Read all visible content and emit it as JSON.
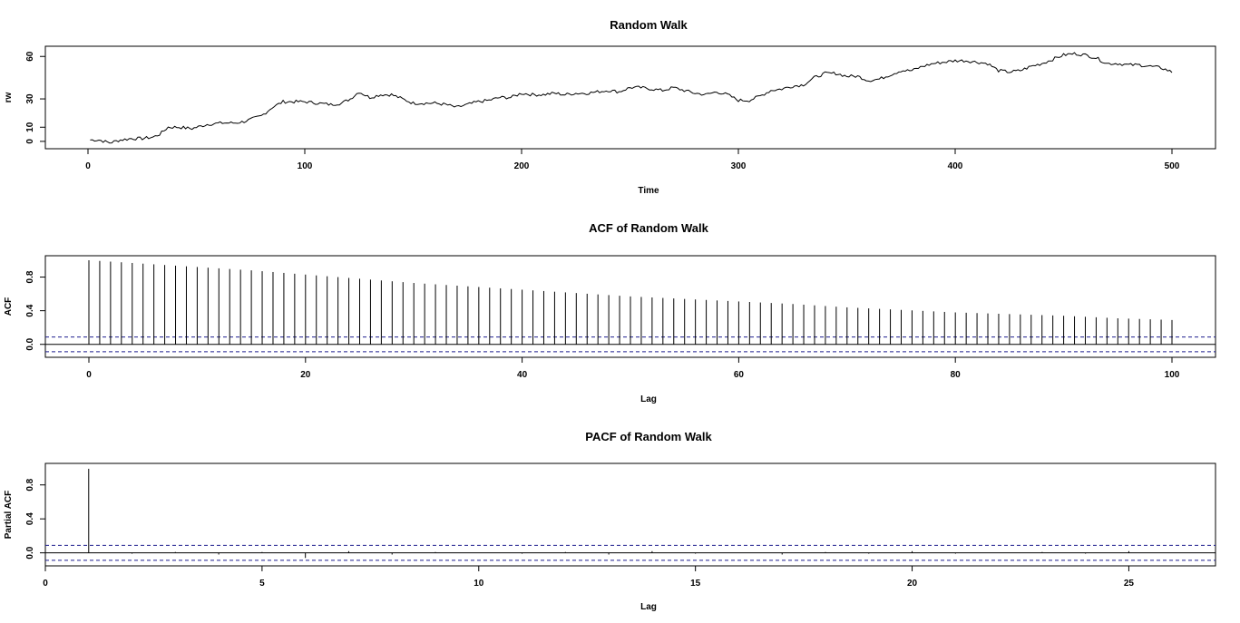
{
  "chart_data": [
    {
      "type": "line",
      "title": "Random Walk",
      "xlabel": "Time",
      "ylabel": "rw",
      "xlim": [
        0,
        500
      ],
      "ylim": [
        -2,
        64
      ],
      "xticks": [
        0,
        100,
        200,
        300,
        400,
        500
      ],
      "yticks": [
        0,
        10,
        30,
        60
      ],
      "grid": false,
      "x_start": 1,
      "x_step": 1,
      "anchors_x": [
        1,
        5,
        10,
        15,
        20,
        25,
        30,
        33,
        37,
        42,
        48,
        55,
        62,
        68,
        72,
        76,
        80,
        85,
        90,
        95,
        100,
        106,
        112,
        117,
        121,
        125,
        130,
        135,
        140,
        145,
        150,
        155,
        160,
        165,
        170,
        175,
        180,
        185,
        190,
        195,
        200,
        205,
        210,
        215,
        220,
        225,
        230,
        235,
        240,
        245,
        250,
        255,
        260,
        265,
        270,
        275,
        280,
        285,
        290,
        295,
        300,
        305,
        310,
        315,
        320,
        325,
        330,
        335,
        340,
        345,
        350,
        355,
        360,
        365,
        370,
        375,
        380,
        385,
        390,
        395,
        400,
        405,
        410,
        415,
        420,
        425,
        430,
        435,
        440,
        445,
        450,
        455,
        460,
        465,
        470,
        475,
        480,
        485,
        490,
        495,
        500
      ],
      "anchors_y": [
        1,
        1,
        -1,
        1,
        2,
        2,
        3,
        5,
        10,
        10,
        9,
        12,
        13,
        13,
        14,
        16,
        18,
        24,
        28,
        28,
        28,
        27,
        26,
        27,
        30,
        35,
        31,
        33,
        33,
        30,
        27,
        27,
        27,
        26,
        24,
        26,
        28,
        29,
        31,
        31,
        34,
        33,
        33,
        34,
        33,
        34,
        34,
        35,
        36,
        35,
        38,
        38,
        37,
        36,
        38,
        36,
        34,
        33,
        35,
        33,
        29,
        29,
        32,
        36,
        37,
        39,
        40,
        45,
        48,
        48,
        46,
        46,
        43,
        44,
        47,
        50,
        50,
        53,
        55,
        56,
        57,
        57,
        56,
        55,
        50,
        49,
        50,
        53,
        55,
        58,
        61,
        62,
        61,
        59,
        55,
        55,
        54,
        54,
        53,
        52,
        49
      ],
      "seed": 7
    },
    {
      "type": "bar",
      "title": "ACF of Random Walk",
      "xlabel": "Lag",
      "ylabel": "ACF",
      "xlim": [
        0,
        100
      ],
      "ylim": [
        -0.1,
        1.0
      ],
      "xticks": [
        0,
        20,
        40,
        60,
        80,
        100
      ],
      "yticks": [
        0.0,
        0.4,
        0.8
      ],
      "ytick_labels": [
        "0.0",
        "0.4",
        "0.8"
      ],
      "conf_limit": 0.088,
      "lags": [
        0,
        5,
        10,
        15,
        20,
        25,
        30,
        35,
        40,
        45,
        50,
        55,
        60,
        65,
        70,
        75,
        80,
        85,
        90,
        95,
        100
      ],
      "acf": [
        1.0,
        0.96,
        0.92,
        0.88,
        0.83,
        0.78,
        0.73,
        0.69,
        0.65,
        0.61,
        0.57,
        0.54,
        0.51,
        0.48,
        0.44,
        0.41,
        0.38,
        0.36,
        0.34,
        0.31,
        0.29
      ]
    },
    {
      "type": "bar",
      "title": "PACF of Random Walk",
      "xlabel": "Lag",
      "ylabel": "Partial ACF",
      "xlim": [
        0,
        27
      ],
      "ylim": [
        -0.1,
        1.0
      ],
      "xticks": [
        0,
        5,
        10,
        15,
        20,
        25
      ],
      "yticks": [
        0.0,
        0.4,
        0.8
      ],
      "ytick_labels": [
        "0.0",
        "0.4",
        "0.8"
      ],
      "conf_limit": 0.088,
      "lags": [
        1,
        2,
        3,
        4,
        5,
        6,
        7,
        8,
        9,
        10,
        11,
        12,
        13,
        14,
        15,
        16,
        17,
        18,
        19,
        20,
        21,
        22,
        23,
        24,
        25,
        26
      ],
      "values": [
        0.99,
        -0.01,
        0.01,
        -0.02,
        0.01,
        -0.06,
        0.02,
        -0.02,
        0.01,
        0.0,
        -0.01,
        0.01,
        -0.02,
        0.02,
        -0.01,
        0.0,
        -0.02,
        0.01,
        -0.01,
        0.02,
        -0.01,
        0.0,
        0.01,
        -0.01,
        0.02,
        0.0
      ]
    }
  ]
}
